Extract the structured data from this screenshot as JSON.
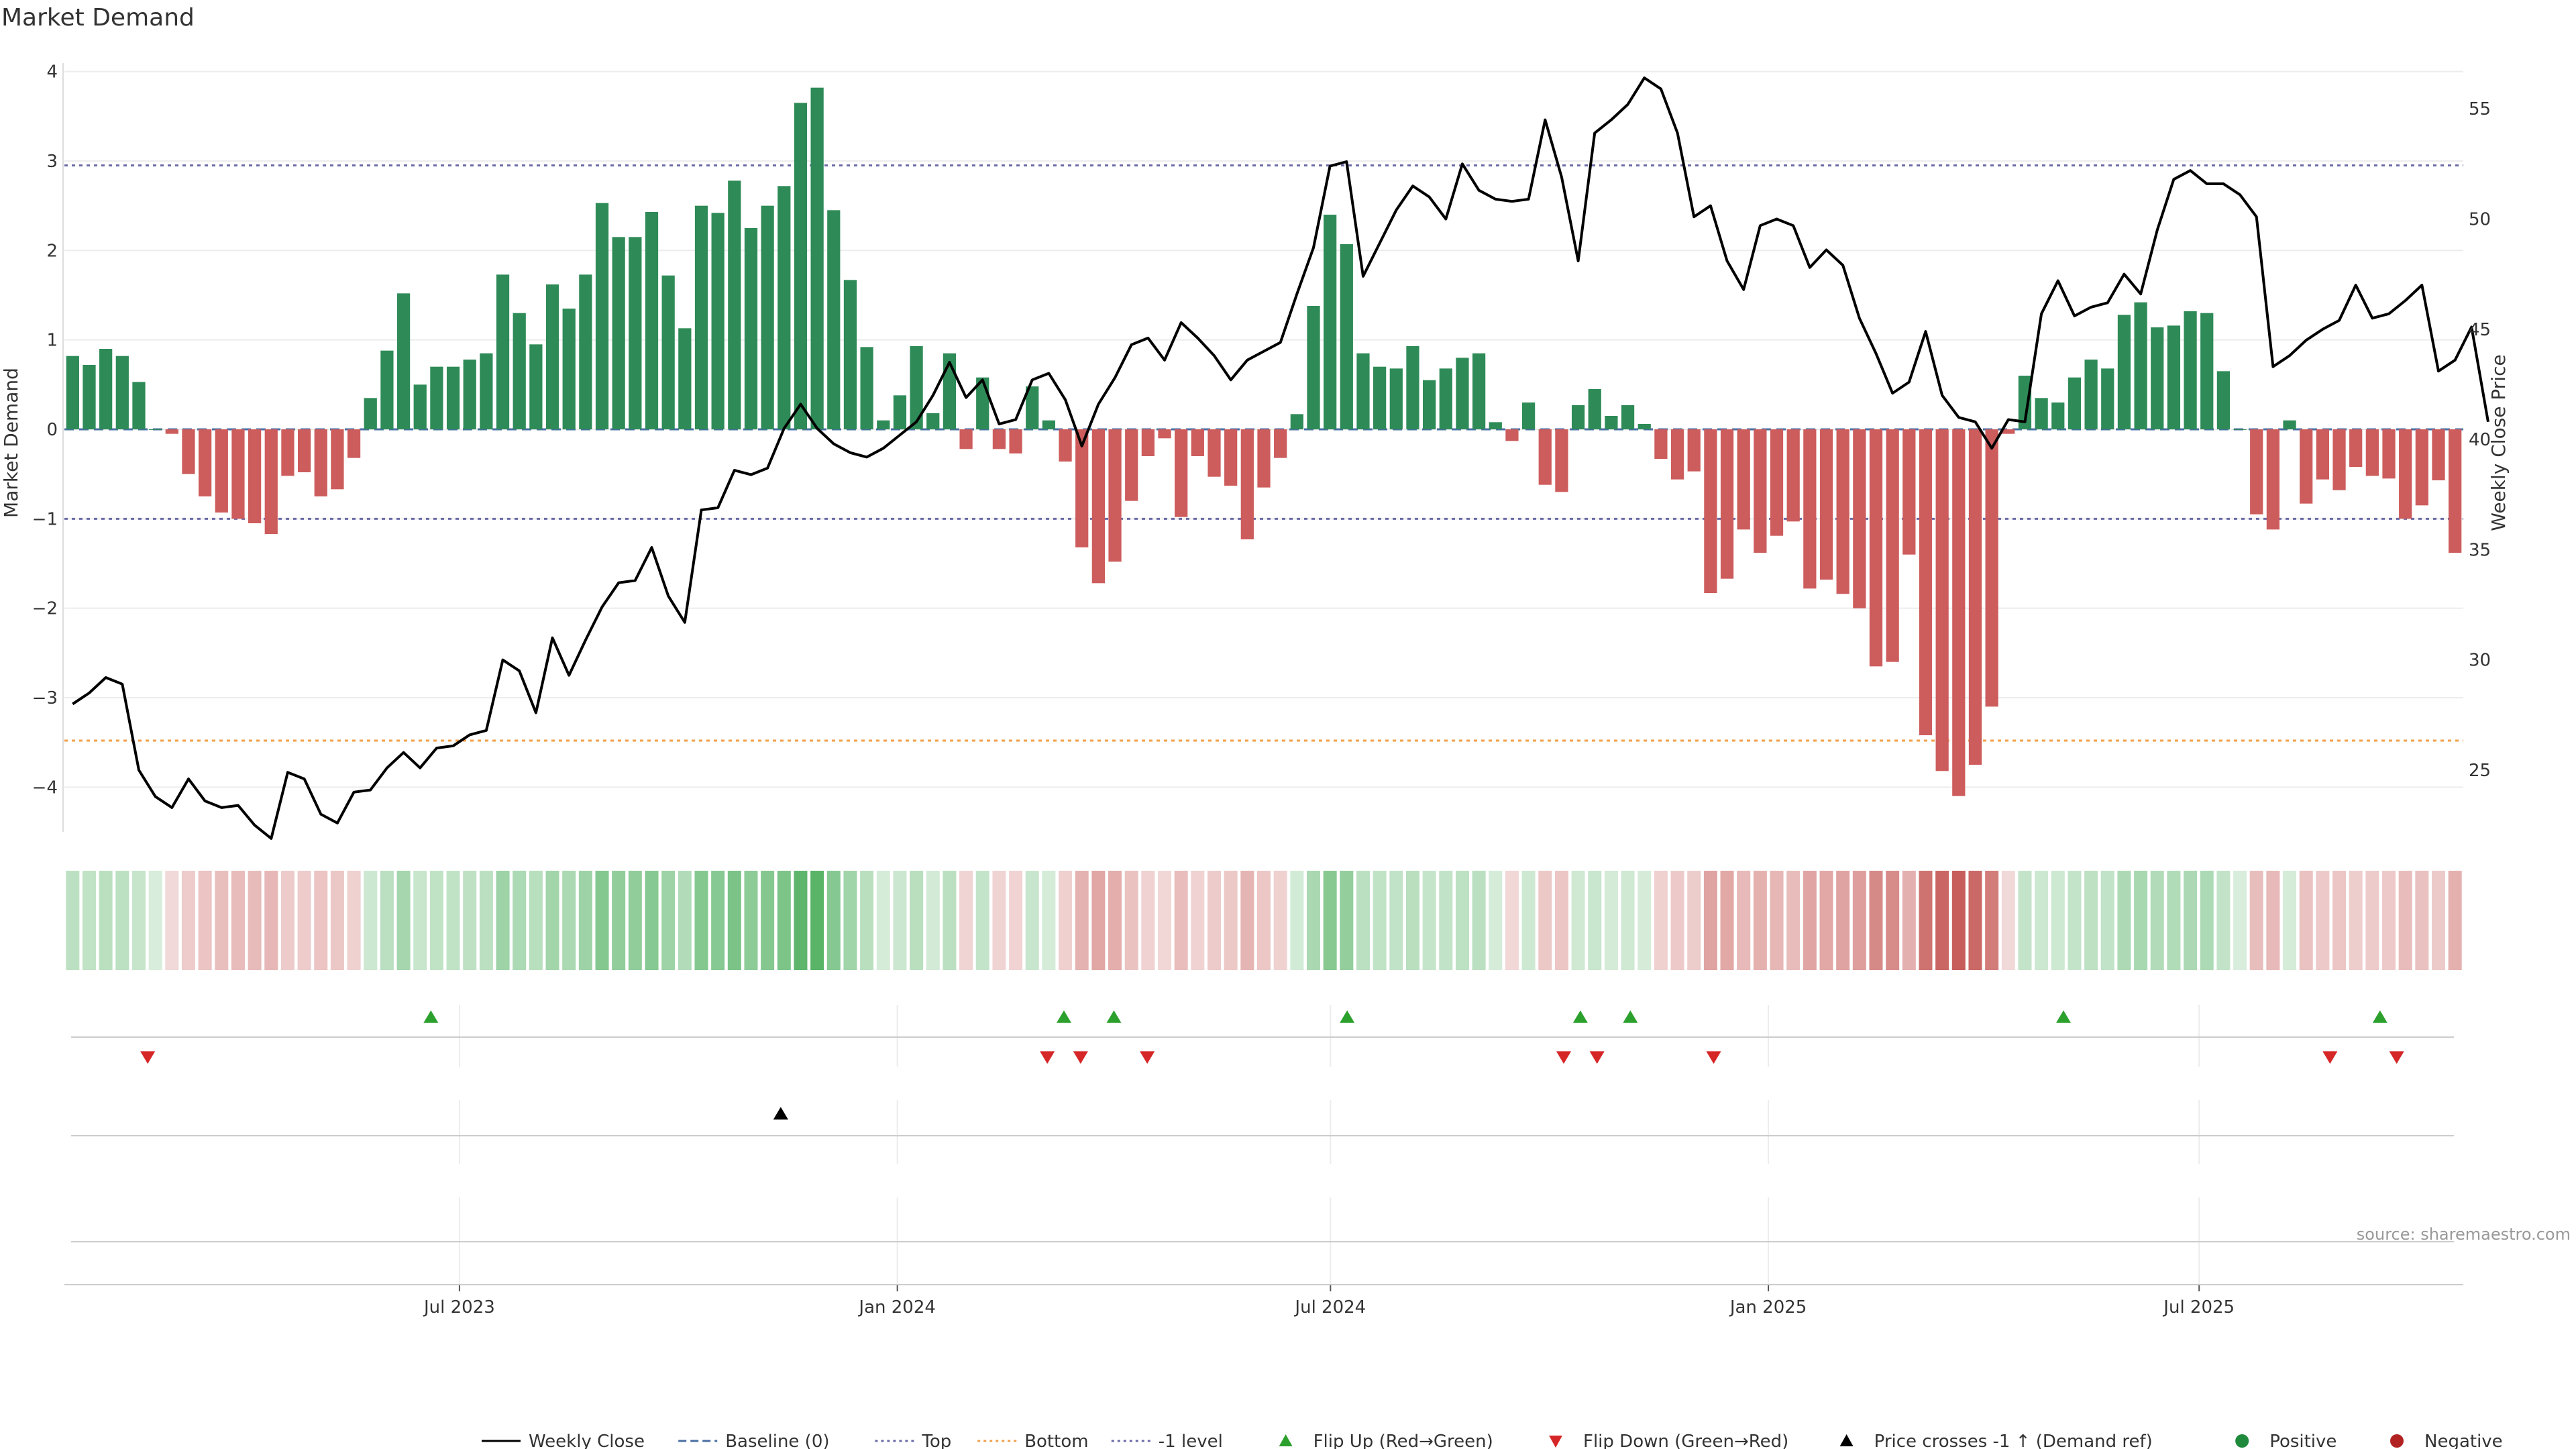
{
  "chart_data": {
    "type": "bar",
    "title": "Market Demand",
    "ylabel": "Market Demand",
    "y2label": "Weekly Close Price",
    "source": "source: sharemaestro.com",
    "ylim": [
      -4.5,
      4.2
    ],
    "y2lim": [
      22.2,
      57.5
    ],
    "yticks": [
      "−4",
      "−3",
      "−2",
      "−1",
      "0",
      "1",
      "2",
      "3",
      "4"
    ],
    "y2ticks": [
      "25",
      "30",
      "35",
      "40",
      "45",
      "50",
      "55"
    ],
    "xticks": [
      "Jul 2023",
      "Jan 2024",
      "Jul 2024",
      "Jan 2025",
      "Jul 2025"
    ],
    "x_start": "2023-01-16",
    "x_end": "2025-10-20",
    "reference_lines": {
      "top": 2.95,
      "bottom": -3.48,
      "minus_one": -1.0
    },
    "demand": [
      0.82,
      0.72,
      0.9,
      0.82,
      0.53,
      0.0,
      -0.05,
      -0.5,
      -0.75,
      -0.93,
      -1.0,
      -1.05,
      -1.17,
      -0.52,
      -0.48,
      -0.75,
      -0.67,
      -0.32,
      0.35,
      0.88,
      1.52,
      0.5,
      0.7,
      0.7,
      0.78,
      0.85,
      1.73,
      1.3,
      0.95,
      1.62,
      1.35,
      1.73,
      2.53,
      2.15,
      2.15,
      2.43,
      1.72,
      1.13,
      2.5,
      2.42,
      2.78,
      2.25,
      2.5,
      2.72,
      3.65,
      3.82,
      2.45,
      1.67,
      0.92,
      0.1,
      0.38,
      0.93,
      0.18,
      0.85,
      -0.22,
      0.58,
      -0.22,
      -0.27,
      0.48,
      0.1,
      -0.36,
      -1.32,
      -1.72,
      -1.48,
      -0.8,
      -0.3,
      -0.1,
      -0.98,
      -0.3,
      -0.53,
      -0.63,
      -1.23,
      -0.65,
      -0.32,
      0.17,
      1.38,
      2.4,
      2.07,
      0.85,
      0.7,
      0.68,
      0.93,
      0.55,
      0.68,
      0.8,
      0.85,
      0.08,
      -0.13,
      0.3,
      -0.62,
      -0.7,
      0.27,
      0.45,
      0.15,
      0.27,
      0.06,
      -0.33,
      -0.56,
      -0.47,
      -1.83,
      -1.67,
      -1.12,
      -1.38,
      -1.19,
      -1.03,
      -1.78,
      -1.68,
      -1.84,
      -2.0,
      -2.65,
      -2.6,
      -1.4,
      -3.42,
      -3.82,
      -4.1,
      -3.75,
      -3.1,
      -0.05,
      0.6,
      0.35,
      0.3,
      0.58,
      0.78,
      0.68,
      1.28,
      1.42,
      1.14,
      1.16,
      1.32,
      1.3,
      0.65,
      0.0,
      -0.95,
      -1.12,
      0.1,
      -0.83,
      -0.56,
      -0.68,
      -0.42,
      -0.52,
      -0.55,
      -1.0,
      -0.85,
      -0.57,
      -1.38
    ],
    "price": [
      28.0,
      28.5,
      29.2,
      28.9,
      25.0,
      23.8,
      23.3,
      24.6,
      23.6,
      23.3,
      23.4,
      22.5,
      21.9,
      24.9,
      24.6,
      23.0,
      22.6,
      24.0,
      24.1,
      25.1,
      25.8,
      25.1,
      26.0,
      26.1,
      26.6,
      26.8,
      30.0,
      29.5,
      27.6,
      31.0,
      29.3,
      30.9,
      32.4,
      33.5,
      33.6,
      35.1,
      32.9,
      31.7,
      36.8,
      36.9,
      38.6,
      38.4,
      38.7,
      40.5,
      41.6,
      40.5,
      39.8,
      39.4,
      39.2,
      39.6,
      40.2,
      40.8,
      42.0,
      43.5,
      41.9,
      42.7,
      40.7,
      40.9,
      42.7,
      43.0,
      41.8,
      39.7,
      41.6,
      42.8,
      44.3,
      44.6,
      43.6,
      45.3,
      44.6,
      43.8,
      42.7,
      43.6,
      44.0,
      44.4,
      46.6,
      48.7,
      52.4,
      52.6,
      47.4,
      48.9,
      50.4,
      51.5,
      51.0,
      50.0,
      52.5,
      51.3,
      50.9,
      50.8,
      50.9,
      54.5,
      51.9,
      48.1,
      53.9,
      54.5,
      55.2,
      56.4,
      55.9,
      53.9,
      50.1,
      50.6,
      48.1,
      46.8,
      49.7,
      50.0,
      49.7,
      47.8,
      48.6,
      47.9,
      45.5,
      43.9,
      42.1,
      42.6,
      44.9,
      42.0,
      41.0,
      40.8,
      39.6,
      40.9,
      40.8,
      45.7,
      47.2,
      45.6,
      46.0,
      46.2,
      47.5,
      46.6,
      49.5,
      51.8,
      52.2,
      51.6,
      51.6,
      51.1,
      50.1,
      43.3,
      43.8,
      44.5,
      45.0,
      45.4,
      47.0,
      45.5,
      45.7,
      46.3,
      47.0,
      43.1,
      43.6,
      45.1,
      40.8
    ],
    "flip_up": [
      "2023-06-19",
      "2024-03-11",
      "2024-04-01",
      "2024-07-08",
      "2024-10-14",
      "2024-11-04",
      "2025-05-05",
      "2025-09-15"
    ],
    "flip_down": [
      "2023-02-20",
      "2024-03-04",
      "2024-03-18",
      "2024-04-15",
      "2024-10-07",
      "2024-10-21",
      "2024-12-09",
      "2025-08-25",
      "2025-09-22"
    ],
    "price_cross": [
      "2023-11-13"
    ],
    "legend": [
      {
        "label": "Weekly Close",
        "kind": "line-solid",
        "color": "#000000"
      },
      {
        "label": "Baseline (0)",
        "kind": "line-dash",
        "color": "#4a6fa5"
      },
      {
        "label": "Top",
        "kind": "line-dot",
        "color": "#6a6aa8"
      },
      {
        "label": "Bottom",
        "kind": "line-dot",
        "color": "#f0a04b"
      },
      {
        "label": "-1 level",
        "kind": "line-dot",
        "color": "#6a6aa8"
      },
      {
        "label": "Flip Up (Red→Green)",
        "kind": "tri-up",
        "color": "#2ca02c"
      },
      {
        "label": "Flip Down (Green→Red)",
        "kind": "tri-down",
        "color": "#d62728"
      },
      {
        "label": "Price crosses -1 ↑ (Demand ref)",
        "kind": "tri-up",
        "color": "#000000"
      },
      {
        "label": "Positive",
        "kind": "dot",
        "color": "#1f8a3b"
      },
      {
        "label": "Negative",
        "kind": "dot",
        "color": "#b22222"
      }
    ],
    "colors": {
      "positive_bar": "#2e8b57",
      "negative_bar": "#cd5c5c",
      "price_line": "#000000",
      "heat_positive": "#4cae5c",
      "heat_negative": "#c65b58"
    },
    "grid": true
  }
}
